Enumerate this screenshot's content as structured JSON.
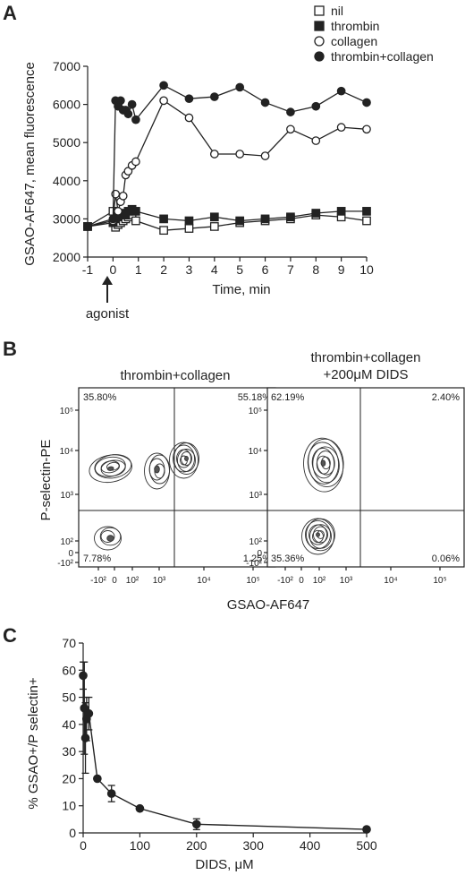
{
  "colors": {
    "ink": "#222222",
    "background": "#ffffff"
  },
  "panel_a": {
    "letter": "A",
    "ylabel": "GSAO-AF647, mean fluorescence",
    "xlabel": "Time, min",
    "annotation": "agonist",
    "legend": [
      "nil",
      "thrombin",
      "collagen",
      "thrombin+collagen"
    ]
  },
  "panel_b": {
    "letter": "B",
    "left_title": "thrombin+collagen",
    "right_title_line1": "thrombin+collagen",
    "right_title_line2": "+200μM DIDS",
    "ylabel": "P-selectin-PE",
    "xlabel": "GSAO-AF647",
    "left_quadrants": {
      "ul": "35.80%",
      "ur": "55.18%",
      "ll": "7.78%",
      "lr": "1.25%"
    },
    "right_quadrants": {
      "ul": "62.19%",
      "ur": "2.40%",
      "ll": "35.36%",
      "lr": "0.06%"
    }
  },
  "panel_c": {
    "letter": "C",
    "ylabel": "% GSAO+/P selectin+",
    "xlabel": "DIDS, μM"
  },
  "chart_data": [
    {
      "type": "line",
      "xlabel": "Time, min",
      "ylabel": "GSAO-AF647, mean fluorescence",
      "xlim": [
        -1,
        10
      ],
      "ylim": [
        2000,
        7000
      ],
      "xticks": [
        -1,
        0,
        1,
        2,
        3,
        4,
        5,
        6,
        7,
        8,
        9,
        10
      ],
      "yticks": [
        2000,
        3000,
        4000,
        5000,
        6000,
        7000
      ],
      "legend_position": "top-right",
      "series": [
        {
          "name": "nil",
          "marker": "open-square",
          "x": [
            -1,
            0,
            0.1,
            0.2,
            0.3,
            0.4,
            0.5,
            0.6,
            0.75,
            0.9,
            2,
            3,
            4,
            5,
            6,
            7,
            8,
            9,
            10
          ],
          "y": [
            2800,
            3200,
            2780,
            2850,
            2900,
            2950,
            3000,
            3050,
            3100,
            2950,
            2700,
            2750,
            2800,
            2900,
            2950,
            3000,
            3100,
            3050,
            2950
          ]
        },
        {
          "name": "thrombin",
          "marker": "filled-square",
          "x": [
            -1,
            0,
            0.1,
            0.2,
            0.3,
            0.4,
            0.5,
            0.6,
            0.75,
            0.9,
            2,
            3,
            4,
            5,
            6,
            7,
            8,
            9,
            10
          ],
          "y": [
            2800,
            2900,
            3000,
            3050,
            3100,
            3150,
            3100,
            3200,
            3250,
            3200,
            3000,
            2950,
            3050,
            2950,
            3000,
            3050,
            3150,
            3200,
            3200
          ]
        },
        {
          "name": "collagen",
          "marker": "open-circle",
          "x": [
            -1,
            0,
            0.1,
            0.2,
            0.3,
            0.4,
            0.5,
            0.6,
            0.75,
            0.9,
            2,
            3,
            4,
            5,
            6,
            7,
            8,
            9,
            10
          ],
          "y": [
            2800,
            2950,
            3650,
            3200,
            3450,
            3600,
            4150,
            4250,
            4400,
            4500,
            6100,
            5650,
            4700,
            4700,
            4650,
            5350,
            5050,
            5400,
            5350
          ]
        },
        {
          "name": "thrombin+collagen",
          "marker": "filled-circle",
          "x": [
            -1,
            0,
            0.1,
            0.2,
            0.3,
            0.4,
            0.5,
            0.6,
            0.75,
            0.9,
            2,
            3,
            4,
            5,
            6,
            7,
            8,
            9,
            10
          ],
          "y": [
            2800,
            3000,
            6100,
            5950,
            6100,
            5850,
            5850,
            5750,
            6000,
            5600,
            6500,
            6150,
            6200,
            6450,
            6050,
            5800,
            5950,
            6350,
            6050
          ]
        }
      ]
    },
    {
      "type": "contour",
      "title": "thrombin+collagen",
      "xlabel": "GSAO-AF647",
      "ylabel": "P-selectin-PE",
      "scale": "biexponential",
      "xticks": [
        "-10^2",
        "0",
        "10^2",
        "10^3",
        "10^4",
        "10^5"
      ],
      "yticks": [
        "-10^2",
        "0",
        "10^2",
        "10^3",
        "10^4",
        "10^5"
      ],
      "quadrants": {
        "upper_left": 35.8,
        "upper_right": 55.18,
        "lower_left": 7.78,
        "lower_right": 1.25
      }
    },
    {
      "type": "contour",
      "title": "thrombin+collagen +200μM DIDS",
      "xlabel": "GSAO-AF647",
      "ylabel": "P-selectin-PE",
      "scale": "biexponential",
      "xticks": [
        "-10^2",
        "0",
        "10^2",
        "10^3",
        "10^4",
        "10^5"
      ],
      "yticks": [
        "-10^2",
        "0",
        "10^2",
        "10^3",
        "10^4",
        "10^5"
      ],
      "quadrants": {
        "upper_left": 62.19,
        "upper_right": 2.4,
        "lower_left": 35.36,
        "lower_right": 0.06
      }
    },
    {
      "type": "line",
      "xlabel": "DIDS, μM",
      "ylabel": "% GSAO+/P selectin+",
      "xlim": [
        0,
        500
      ],
      "ylim": [
        0,
        70
      ],
      "xticks": [
        0,
        100,
        200,
        300,
        400,
        500
      ],
      "yticks": [
        0,
        10,
        20,
        30,
        40,
        50,
        60,
        70
      ],
      "series": [
        {
          "name": "",
          "marker": "filled-circle",
          "x": [
            0,
            2,
            4,
            6,
            10,
            25,
            50,
            100,
            200,
            500
          ],
          "y": [
            58,
            46,
            35,
            42,
            44,
            20,
            14.5,
            9,
            3.2,
            1.3
          ],
          "error": [
            5,
            17,
            13,
            8,
            6,
            0,
            3,
            0,
            2,
            0
          ]
        }
      ]
    }
  ]
}
